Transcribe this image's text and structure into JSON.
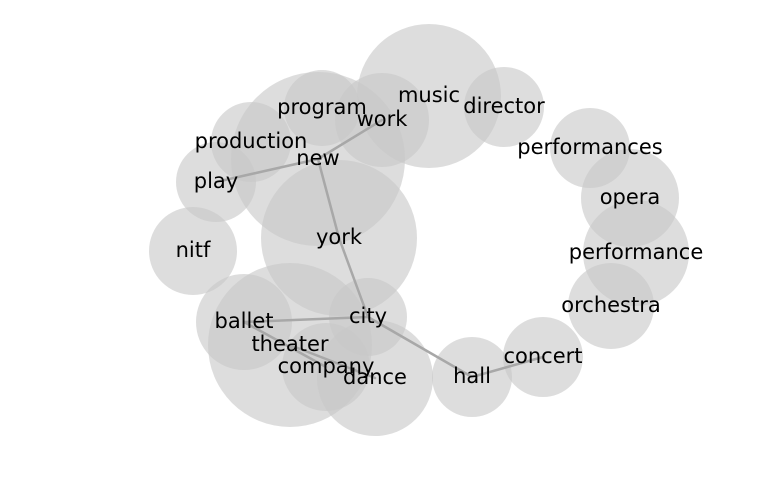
{
  "graph": {
    "nodes": [
      {
        "id": "music",
        "label": "music"
      },
      {
        "id": "director",
        "label": "director"
      },
      {
        "id": "program",
        "label": "program"
      },
      {
        "id": "work",
        "label": "work"
      },
      {
        "id": "production",
        "label": "production"
      },
      {
        "id": "new",
        "label": "new"
      },
      {
        "id": "play",
        "label": "play"
      },
      {
        "id": "york",
        "label": "york"
      },
      {
        "id": "nitf",
        "label": "nitf"
      },
      {
        "id": "ballet",
        "label": "ballet"
      },
      {
        "id": "city",
        "label": "city"
      },
      {
        "id": "theater",
        "label": "theater"
      },
      {
        "id": "company",
        "label": "company"
      },
      {
        "id": "dance",
        "label": "dance"
      },
      {
        "id": "hall",
        "label": "hall"
      },
      {
        "id": "concert",
        "label": "concert"
      },
      {
        "id": "performances",
        "label": "performances"
      },
      {
        "id": "opera",
        "label": "opera"
      },
      {
        "id": "performance",
        "label": "performance"
      },
      {
        "id": "orchestra",
        "label": "orchestra"
      }
    ],
    "edges": [
      [
        "new",
        "work"
      ],
      [
        "new",
        "play"
      ],
      [
        "new",
        "york"
      ],
      [
        "york",
        "city"
      ],
      [
        "city",
        "ballet"
      ],
      [
        "city",
        "hall"
      ],
      [
        "hall",
        "concert"
      ],
      [
        "theater",
        "dance"
      ],
      [
        "ballet",
        "company"
      ]
    ]
  }
}
